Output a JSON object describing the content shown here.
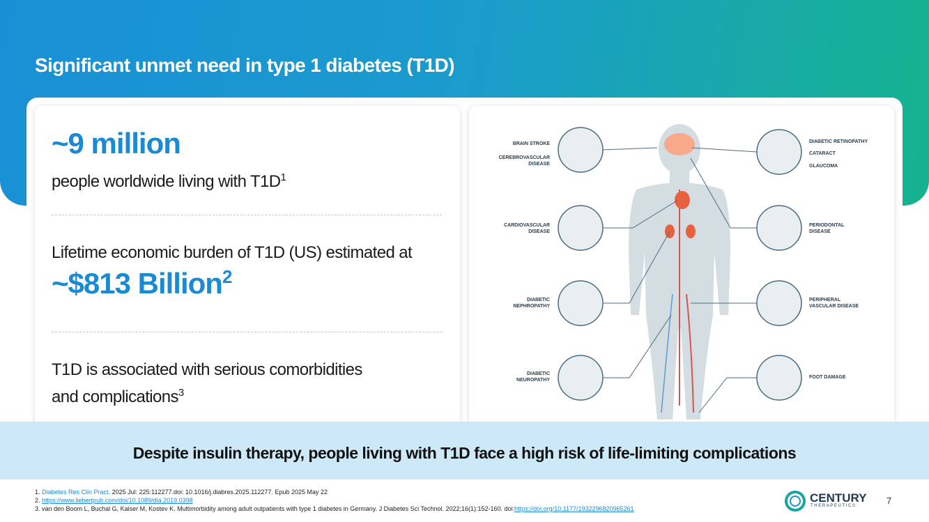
{
  "header": {
    "title": "Significant unmet need in type 1 diabetes (T1D)"
  },
  "stats": [
    {
      "headline": "~9 million",
      "text": "people worldwide living with T1D",
      "ref": "1"
    },
    {
      "text": "Lifetime economic burden of T1D (US) estimated at",
      "headline": "~$813 Billion",
      "ref": "2"
    },
    {
      "lines": [
        "T1D is associated with serious comorbidities",
        "and complications"
      ],
      "ref": "3"
    }
  ],
  "diagram": {
    "left": [
      {
        "lines": [
          "BRAIN STROKE"
        ]
      },
      {
        "lines": [
          "CEREBROVASCULAR",
          "DISEASE"
        ]
      },
      {
        "lines": [
          "CARDIOVASCULAR",
          "DISEASE"
        ]
      },
      {
        "lines": [
          "DIABETIC",
          "NEPHROPATHY"
        ]
      },
      {
        "lines": [
          "DIABETIC",
          "NEUROPATHY"
        ]
      }
    ],
    "right": [
      {
        "lines": [
          "DIABETIC RETINOPATHY"
        ]
      },
      {
        "lines": [
          "CATARACT"
        ]
      },
      {
        "lines": [
          "GLAUCOMA"
        ]
      },
      {
        "lines": [
          "PERIODONTAL",
          "DISEASE"
        ]
      },
      {
        "lines": [
          "PERIPHERAL",
          "VASCULAR DISEASE"
        ]
      },
      {
        "lines": [
          "FOOT DAMAGE"
        ]
      }
    ]
  },
  "banner": "Despite insulin therapy, people living with T1D face a high risk of life-limiting complications",
  "footnotes": [
    {
      "marker": "1.",
      "link": "Diabetes Res Clin Pract.",
      "text": " 2025 Jul: 225:112277.doi: 10.1016/j.diabres.2025.112277. Epub 2025 May 22"
    },
    {
      "marker": "2.",
      "link": "https://www.liebertpub.com/doi/10.1089/dia.2019.0398"
    },
    {
      "marker": "3.",
      "text": "van den Boom L, Buchal G, Kaiser M, Kostev K. Multimorbidity among adult outpatients with type 1 diabetes in Germany. J Diabetes Sci Technol. 2022;16(1):152-160. doi:",
      "link": "https://doi.org/10.1177/1932296820965261"
    }
  ],
  "logo": {
    "name": "CENTURY",
    "sub": "THERAPEUTICS"
  },
  "page_number": "7"
}
